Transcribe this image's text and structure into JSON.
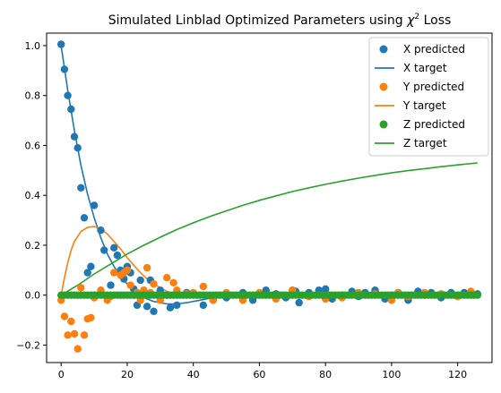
{
  "chart_data": {
    "type": "scatter",
    "title": "Simulated Linblad Optimized Parameters using χ² Loss",
    "title_prefix": "Simulated Linblad Optimized Parameters using ",
    "title_symbol": "χ",
    "title_superscript": "2",
    "title_suffix": " Loss",
    "xlabel": "",
    "ylabel": "",
    "xlim": [
      -4.4,
      130.4
    ],
    "ylim": [
      -0.27,
      1.05
    ],
    "xticks": [
      0,
      20,
      40,
      60,
      80,
      100,
      120
    ],
    "xtick_labels": [
      "0",
      "20",
      "40",
      "60",
      "80",
      "100",
      "120"
    ],
    "yticks": [
      -0.2,
      0.0,
      0.2,
      0.4,
      0.6,
      0.8,
      1.0
    ],
    "ytick_labels": [
      "−0.2",
      "0.0",
      "0.2",
      "0.4",
      "0.6",
      "0.8",
      "1.0"
    ],
    "grid": false,
    "legend_position": "top-right",
    "colors": {
      "X": "#1f77b4",
      "Y": "#ff7f0e",
      "Z": "#2ca02c"
    },
    "series": [
      {
        "name": "X predicted",
        "kind": "scatter",
        "color": "#1f77b4",
        "x": [
          0,
          1,
          2,
          3,
          4,
          5,
          6,
          7,
          8,
          9,
          10,
          12,
          13,
          15,
          16,
          17,
          18,
          19,
          20,
          21,
          22,
          23,
          24,
          25,
          26,
          27,
          28,
          30,
          32,
          33,
          35,
          38,
          43,
          46,
          50,
          55,
          58,
          62,
          65,
          68,
          70,
          71,
          72,
          75,
          78,
          80,
          82,
          85,
          88,
          90,
          92,
          95,
          98,
          100,
          102,
          105,
          108,
          110,
          112,
          115,
          118,
          120,
          122,
          124,
          126
        ],
        "y": [
          1.005,
          0.905,
          0.8,
          0.745,
          0.635,
          0.59,
          0.43,
          0.31,
          0.09,
          0.115,
          0.36,
          0.26,
          0.18,
          0.04,
          0.19,
          0.16,
          0.1,
          0.065,
          0.115,
          0.09,
          0.025,
          -0.04,
          0.06,
          0.01,
          -0.045,
          0.06,
          -0.065,
          0.02,
          0.0,
          -0.05,
          -0.04,
          0.01,
          -0.04,
          -0.02,
          -0.01,
          0.01,
          -0.02,
          0.02,
          0.005,
          -0.01,
          0.02,
          0.015,
          -0.03,
          0.01,
          0.02,
          0.025,
          -0.015,
          0.0,
          0.015,
          -0.005,
          0.01,
          0.02,
          -0.015,
          0.0,
          0.01,
          -0.02,
          0.015,
          0.0,
          0.01,
          -0.01,
          0.01,
          0.0,
          0.01,
          0.01,
          0.005
        ]
      },
      {
        "name": "X target",
        "kind": "line",
        "color": "#1f77b4",
        "curve": "x"
      },
      {
        "name": "Y predicted",
        "kind": "scatter",
        "color": "#ff7f0e",
        "x": [
          0,
          1,
          2,
          3,
          4,
          5,
          6,
          7,
          8,
          9,
          10,
          12,
          14,
          15,
          16,
          18,
          19,
          20,
          21,
          22,
          23,
          24,
          25,
          26,
          27,
          28,
          30,
          32,
          34,
          35,
          38,
          40,
          43,
          46,
          50,
          55,
          60,
          65,
          70,
          75,
          80,
          85,
          90,
          95,
          100,
          102,
          105,
          110,
          115,
          120,
          124
        ],
        "y": [
          -0.02,
          -0.085,
          -0.16,
          -0.105,
          -0.155,
          -0.215,
          0.03,
          -0.16,
          -0.095,
          -0.09,
          -0.01,
          0.02,
          -0.02,
          -0.005,
          0.09,
          0.08,
          0.09,
          0.1,
          0.04,
          0.0,
          0.01,
          -0.02,
          0.02,
          0.11,
          0.01,
          0.045,
          -0.02,
          0.07,
          0.05,
          0.02,
          0.005,
          0.01,
          0.035,
          -0.02,
          0.01,
          -0.02,
          0.01,
          -0.015,
          0.02,
          -0.005,
          -0.015,
          -0.01,
          0.01,
          0.005,
          -0.02,
          0.01,
          -0.005,
          0.01,
          0.005,
          -0.005,
          0.015
        ]
      },
      {
        "name": "Y target",
        "kind": "line",
        "color": "#ff7f0e",
        "curve": "y"
      },
      {
        "name": "Z predicted",
        "kind": "scatter",
        "color": "#2ca02c",
        "x": [
          0,
          1,
          2,
          3,
          4,
          5,
          6,
          7,
          8,
          9,
          10,
          11,
          12,
          13,
          14,
          15,
          16,
          17,
          18,
          19,
          20,
          21,
          22,
          23,
          24,
          25,
          26,
          27,
          28,
          29,
          30,
          31,
          32,
          33,
          34,
          35,
          36,
          37,
          38,
          39,
          40,
          41,
          42,
          43,
          44,
          45,
          46,
          47,
          48,
          49,
          50,
          51,
          52,
          53,
          54,
          55,
          56,
          57,
          58,
          59,
          60,
          61,
          62,
          63,
          64,
          65,
          66,
          67,
          68,
          69,
          70,
          71,
          72,
          73,
          74,
          75,
          76,
          77,
          78,
          79,
          80,
          81,
          82,
          83,
          84,
          85,
          86,
          87,
          88,
          89,
          90,
          91,
          92,
          93,
          94,
          95,
          96,
          97,
          98,
          99,
          100,
          101,
          102,
          103,
          104,
          105,
          106,
          107,
          108,
          109,
          110,
          111,
          112,
          113,
          114,
          115,
          116,
          117,
          118,
          119,
          120,
          121,
          122,
          123,
          124,
          125,
          126
        ],
        "y": [
          0.0,
          0.0,
          0.0,
          0.0,
          0.0,
          0.0,
          0.0,
          0.0,
          0.0,
          0.0,
          0.0,
          0.0,
          0.0,
          0.0,
          0.0,
          0.0,
          0.0,
          0.0,
          0.0,
          0.0,
          0.0,
          0.0,
          0.0,
          0.0,
          0.0,
          0.0,
          0.0,
          0.0,
          0.0,
          0.0,
          0.0,
          0.0,
          0.0,
          0.0,
          0.0,
          0.0,
          0.0,
          0.0,
          0.0,
          0.0,
          0.0,
          0.0,
          0.0,
          0.0,
          0.0,
          0.0,
          0.0,
          0.0,
          0.0,
          0.0,
          0.0,
          0.0,
          0.0,
          0.0,
          0.0,
          0.0,
          0.0,
          0.0,
          0.0,
          0.0,
          0.0,
          0.0,
          0.0,
          0.0,
          0.0,
          0.0,
          0.0,
          0.0,
          0.0,
          0.0,
          0.0,
          0.0,
          0.0,
          0.0,
          0.0,
          0.0,
          0.0,
          0.0,
          0.0,
          0.0,
          0.0,
          0.0,
          0.0,
          0.0,
          0.0,
          0.0,
          0.0,
          0.0,
          0.0,
          0.0,
          0.0,
          0.0,
          0.0,
          0.0,
          0.0,
          0.0,
          0.0,
          0.0,
          0.0,
          0.0,
          0.0,
          0.0,
          0.0,
          0.0,
          0.0,
          0.0,
          0.0,
          0.0,
          0.0,
          0.0,
          0.0,
          0.0,
          0.0,
          0.0,
          0.0,
          0.0,
          0.0,
          0.0,
          0.0,
          0.0,
          0.0,
          0.0,
          0.0,
          0.0,
          0.0,
          0.0,
          0.0
        ]
      },
      {
        "name": "Z target",
        "kind": "line",
        "color": "#2ca02c",
        "curve": "z"
      }
    ],
    "target_curves": {
      "x": [
        [
          0,
          1.0
        ],
        [
          2,
          0.82
        ],
        [
          4,
          0.66
        ],
        [
          6,
          0.52
        ],
        [
          8,
          0.405
        ],
        [
          10,
          0.31
        ],
        [
          12,
          0.23
        ],
        [
          14,
          0.165
        ],
        [
          16,
          0.115
        ],
        [
          18,
          0.075
        ],
        [
          20,
          0.045
        ],
        [
          22,
          0.02
        ],
        [
          24,
          0.0
        ],
        [
          26,
          -0.015
        ],
        [
          28,
          -0.025
        ],
        [
          30,
          -0.03
        ],
        [
          32,
          -0.035
        ],
        [
          35,
          -0.035
        ],
        [
          38,
          -0.03
        ],
        [
          42,
          -0.02
        ],
        [
          46,
          -0.01
        ],
        [
          50,
          -0.005
        ],
        [
          55,
          0.0
        ],
        [
          60,
          0.003
        ],
        [
          70,
          0.003
        ],
        [
          80,
          0.001
        ],
        [
          90,
          0.0
        ],
        [
          126,
          0.0
        ]
      ],
      "y": [
        [
          0,
          0.0
        ],
        [
          1,
          0.07
        ],
        [
          2,
          0.13
        ],
        [
          3,
          0.18
        ],
        [
          4,
          0.215
        ],
        [
          6,
          0.255
        ],
        [
          8,
          0.272
        ],
        [
          10,
          0.275
        ],
        [
          12,
          0.265
        ],
        [
          14,
          0.245
        ],
        [
          16,
          0.215
        ],
        [
          18,
          0.185
        ],
        [
          20,
          0.15
        ],
        [
          22,
          0.12
        ],
        [
          24,
          0.09
        ],
        [
          26,
          0.065
        ],
        [
          28,
          0.045
        ],
        [
          30,
          0.03
        ],
        [
          32,
          0.015
        ],
        [
          34,
          0.008
        ],
        [
          36,
          0.002
        ],
        [
          40,
          -0.005
        ],
        [
          45,
          -0.007
        ],
        [
          50,
          -0.006
        ],
        [
          55,
          -0.004
        ],
        [
          60,
          -0.002
        ],
        [
          70,
          0.0
        ],
        [
          126,
          0.0
        ]
      ],
      "z": [
        [
          0,
          0.0
        ],
        [
          5,
          0.04
        ],
        [
          10,
          0.085
        ],
        [
          15,
          0.125
        ],
        [
          20,
          0.165
        ],
        [
          25,
          0.2
        ],
        [
          30,
          0.232
        ],
        [
          35,
          0.263
        ],
        [
          40,
          0.29
        ],
        [
          45,
          0.315
        ],
        [
          50,
          0.338
        ],
        [
          55,
          0.36
        ],
        [
          60,
          0.38
        ],
        [
          65,
          0.398
        ],
        [
          70,
          0.415
        ],
        [
          75,
          0.43
        ],
        [
          80,
          0.444
        ],
        [
          85,
          0.457
        ],
        [
          90,
          0.469
        ],
        [
          95,
          0.48
        ],
        [
          100,
          0.49
        ],
        [
          105,
          0.499
        ],
        [
          110,
          0.507
        ],
        [
          115,
          0.515
        ],
        [
          120,
          0.522
        ],
        [
          126,
          0.53
        ]
      ]
    },
    "legend": [
      {
        "label": "X predicted",
        "marker": "circle",
        "color": "#1f77b4"
      },
      {
        "label": "X target",
        "marker": "line",
        "color": "#1f77b4"
      },
      {
        "label": "Y predicted",
        "marker": "circle",
        "color": "#ff7f0e"
      },
      {
        "label": "Y target",
        "marker": "line",
        "color": "#ff7f0e"
      },
      {
        "label": "Z predicted",
        "marker": "circle",
        "color": "#2ca02c"
      },
      {
        "label": "Z target",
        "marker": "line",
        "color": "#2ca02c"
      }
    ]
  }
}
